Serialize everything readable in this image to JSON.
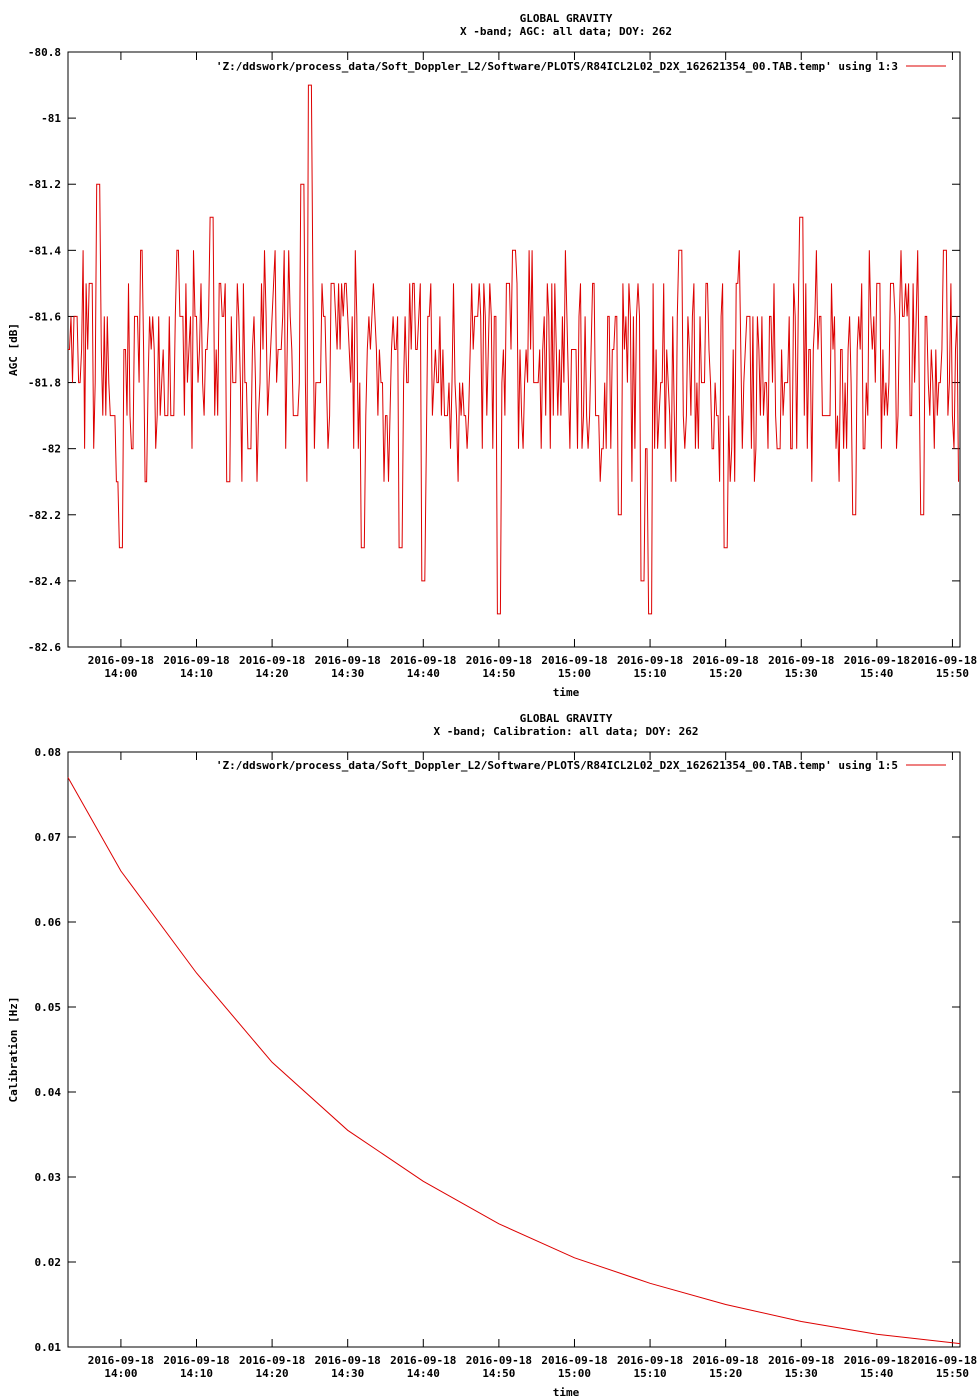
{
  "chart_data": [
    {
      "type": "line",
      "title": "GLOBAL GRAVITY",
      "subtitle": "X -band; AGC: all data; DOY: 262",
      "xlabel": "time",
      "ylabel": "AGC [dB]",
      "ylim": [
        -82.6,
        -80.8
      ],
      "yticks": [
        -80.8,
        -81,
        -81.2,
        -81.4,
        -81.6,
        -81.8,
        -82,
        -82.2,
        -82.4,
        -82.6
      ],
      "ytick_labels": [
        "-80.8",
        "-81",
        "-81.2",
        "-81.4",
        "-81.6",
        "-81.8",
        "-82",
        "-82.2",
        "-82.4",
        "-82.6"
      ],
      "xlim": [
        "13:53",
        "15:51"
      ],
      "xtick_dates": [
        "2016-09-18",
        "2016-09-18",
        "2016-09-18",
        "2016-09-18",
        "2016-09-18",
        "2016-09-18",
        "2016-09-18",
        "2016-09-18",
        "2016-09-18",
        "2016-09-18",
        "2016-09-18",
        "2016-09-18"
      ],
      "xtick_times": [
        "14:00",
        "14:10",
        "14:20",
        "14:30",
        "14:40",
        "14:50",
        "15:00",
        "15:10",
        "15:20",
        "15:30",
        "15:40",
        "15:50"
      ],
      "legend": "top-right",
      "series": [
        {
          "name": "'Z:/ddswork/process_data/Soft_Doppler_L2/Software/PLOTS/R84ICL2L02_D2X_162621354_00.TAB.temp' using 1:3",
          "color": "#dd0000",
          "x": [
            "13:53",
            "13:56",
            "13:57",
            "13:59",
            "13:59:30",
            "14:00",
            "14:02",
            "14:06",
            "14:08",
            "14:12",
            "14:15",
            "14:17",
            "14:21",
            "14:23",
            "14:24",
            "14:25",
            "14:26",
            "14:28",
            "14:32",
            "14:37",
            "14:40",
            "14:43",
            "14:47",
            "14:50",
            "14:52",
            "14:55",
            "15:00",
            "15:03",
            "15:06",
            "15:09",
            "15:10",
            "15:14",
            "15:17",
            "15:20",
            "15:23",
            "15:27",
            "15:30",
            "15:33",
            "15:37",
            "15:42",
            "15:46",
            "15:49",
            "15:51"
          ],
          "y": [
            -81.7,
            -81.5,
            -81.2,
            -81.9,
            -82.1,
            -82.3,
            -81.6,
            -81.9,
            -81.6,
            -81.3,
            -81.8,
            -82.0,
            -81.7,
            -81.9,
            -81.2,
            -80.9,
            -81.8,
            -81.5,
            -82.3,
            -82.3,
            -82.4,
            -81.9,
            -81.6,
            -82.5,
            -81.4,
            -81.8,
            -81.7,
            -81.9,
            -82.2,
            -82.4,
            -82.5,
            -81.4,
            -81.8,
            -82.3,
            -81.6,
            -82.0,
            -81.3,
            -81.9,
            -82.2,
            -81.5,
            -82.2,
            -81.4,
            -82.1
          ]
        }
      ]
    },
    {
      "type": "line",
      "title": "GLOBAL GRAVITY",
      "subtitle": "X -band; Calibration: all data; DOY: 262",
      "xlabel": "time",
      "ylabel": "Calibration [Hz]",
      "ylim": [
        0.01,
        0.08
      ],
      "yticks": [
        0.01,
        0.02,
        0.03,
        0.04,
        0.05,
        0.06,
        0.07,
        0.08
      ],
      "ytick_labels": [
        "0.01",
        "0.02",
        "0.03",
        "0.04",
        "0.05",
        "0.06",
        "0.07",
        "0.08"
      ],
      "xlim": [
        "13:53",
        "15:51"
      ],
      "xtick_dates": [
        "2016-09-18",
        "2016-09-18",
        "2016-09-18",
        "2016-09-18",
        "2016-09-18",
        "2016-09-18",
        "2016-09-18",
        "2016-09-18",
        "2016-09-18",
        "2016-09-18",
        "2016-09-18",
        "2016-09-18"
      ],
      "xtick_times": [
        "14:00",
        "14:10",
        "14:20",
        "14:30",
        "14:40",
        "14:50",
        "15:00",
        "15:10",
        "15:20",
        "15:30",
        "15:40",
        "15:50"
      ],
      "legend": "top-right",
      "series": [
        {
          "name": "'Z:/ddswork/process_data/Soft_Doppler_L2/Software/PLOTS/R84ICL2L02_D2X_162621354_00.TAB.temp' using 1:5",
          "color": "#dd0000",
          "x": [
            "13:53",
            "14:00",
            "14:10",
            "14:20",
            "14:30",
            "14:40",
            "14:50",
            "15:00",
            "15:10",
            "15:20",
            "15:30",
            "15:40",
            "15:50",
            "15:51"
          ],
          "y": [
            0.077,
            0.066,
            0.054,
            0.0435,
            0.0355,
            0.0295,
            0.0245,
            0.0205,
            0.0175,
            0.015,
            0.013,
            0.0115,
            0.0105,
            0.0104
          ]
        }
      ]
    }
  ]
}
